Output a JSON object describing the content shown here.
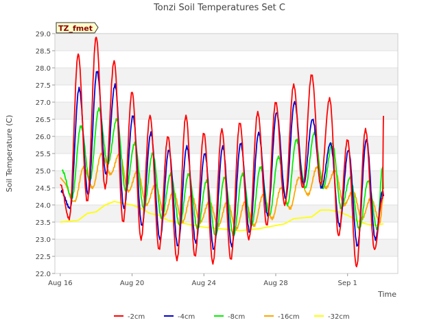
{
  "chart_data": {
    "type": "line",
    "title": "Tonzi Soil Temperatures Set C",
    "xlabel": "Time",
    "ylabel": "Soil Temperature (C)",
    "annotation": "TZ_fmet",
    "xlim": [
      0,
      18
    ],
    "ylim": [
      22.0,
      29.0
    ],
    "x_ticks": [
      {
        "label": "Aug 16",
        "value": 0
      },
      {
        "label": "Aug 20",
        "value": 4
      },
      {
        "label": "Aug 24",
        "value": 8
      },
      {
        "label": "Aug 28",
        "value": 12
      },
      {
        "label": "Sep 1",
        "value": 16
      }
    ],
    "y_ticks": [
      "22.0",
      "22.5",
      "23.0",
      "23.5",
      "24.0",
      "24.5",
      "25.0",
      "25.5",
      "26.0",
      "26.5",
      "27.0",
      "27.5",
      "28.0",
      "28.5",
      "29.0"
    ],
    "grid": "horizontal bands",
    "legend_position": "bottom",
    "colors": {
      "-2cm": "#ff0000",
      "-4cm": "#0000cc",
      "-8cm": "#00ee00",
      "-16cm": "#ffa500",
      "-32cm": "#ffff00"
    },
    "series": [
      {
        "name": "-2cm",
        "peaks": [
          [
            0.0,
            24.6
          ],
          [
            1.0,
            28.4
          ],
          [
            2.0,
            28.9
          ],
          [
            3.0,
            28.2
          ],
          [
            4.0,
            27.3
          ],
          [
            5.0,
            26.6
          ],
          [
            6.0,
            26.0
          ],
          [
            7.0,
            26.6
          ],
          [
            8.0,
            26.1
          ],
          [
            9.0,
            26.2
          ],
          [
            10.0,
            26.4
          ],
          [
            11.0,
            26.7
          ],
          [
            12.0,
            27.0
          ],
          [
            13.0,
            27.5
          ],
          [
            14.0,
            27.8
          ],
          [
            15.0,
            27.1
          ],
          [
            16.0,
            25.9
          ],
          [
            17.0,
            26.2
          ],
          [
            18.0,
            26.6
          ]
        ],
        "troughs": [
          [
            0.5,
            23.6
          ],
          [
            1.5,
            24.1
          ],
          [
            2.5,
            24.5
          ],
          [
            3.5,
            23.5
          ],
          [
            4.5,
            23.0
          ],
          [
            5.5,
            22.7
          ],
          [
            6.5,
            22.4
          ],
          [
            7.5,
            22.5
          ],
          [
            8.5,
            22.3
          ],
          [
            9.5,
            22.4
          ],
          [
            10.5,
            23.0
          ],
          [
            11.5,
            23.4
          ],
          [
            12.5,
            24.0
          ],
          [
            13.5,
            24.5
          ],
          [
            14.5,
            24.6
          ],
          [
            15.5,
            23.1
          ],
          [
            16.5,
            22.2
          ],
          [
            17.5,
            22.7
          ],
          [
            17.95,
            24.2
          ]
        ]
      },
      {
        "name": "-4cm",
        "peaks": [
          [
            0.05,
            24.4
          ],
          [
            1.05,
            27.4
          ],
          [
            2.05,
            27.9
          ],
          [
            3.05,
            27.5
          ],
          [
            4.05,
            26.6
          ],
          [
            5.05,
            26.1
          ],
          [
            6.05,
            25.6
          ],
          [
            7.05,
            25.7
          ],
          [
            8.05,
            25.5
          ],
          [
            9.05,
            25.7
          ],
          [
            10.05,
            25.8
          ],
          [
            11.05,
            26.1
          ],
          [
            12.05,
            26.7
          ],
          [
            13.05,
            27.0
          ],
          [
            14.05,
            26.5
          ],
          [
            15.05,
            25.8
          ],
          [
            16.05,
            25.6
          ],
          [
            17.05,
            25.9
          ],
          [
            18.0,
            24.3
          ]
        ],
        "troughs": [
          [
            0.55,
            23.9
          ],
          [
            1.55,
            24.3
          ],
          [
            2.55,
            24.9
          ],
          [
            3.55,
            23.9
          ],
          [
            4.55,
            23.4
          ],
          [
            5.55,
            23.0
          ],
          [
            6.55,
            22.8
          ],
          [
            7.55,
            22.9
          ],
          [
            8.55,
            22.7
          ],
          [
            9.55,
            22.8
          ],
          [
            10.55,
            23.2
          ],
          [
            11.55,
            23.7
          ],
          [
            12.55,
            24.2
          ],
          [
            13.55,
            24.6
          ],
          [
            14.55,
            24.5
          ],
          [
            15.55,
            23.4
          ],
          [
            16.55,
            22.8
          ],
          [
            17.55,
            23.0
          ],
          [
            17.95,
            24.4
          ]
        ]
      },
      {
        "name": "-8cm",
        "peaks": [
          [
            0.1,
            25.0
          ],
          [
            1.15,
            26.3
          ],
          [
            2.15,
            26.8
          ],
          [
            3.15,
            26.5
          ],
          [
            4.15,
            25.8
          ],
          [
            5.15,
            25.5
          ],
          [
            6.15,
            24.9
          ],
          [
            7.15,
            24.9
          ],
          [
            8.15,
            24.7
          ],
          [
            9.15,
            24.8
          ],
          [
            10.15,
            24.9
          ],
          [
            11.15,
            25.1
          ],
          [
            12.15,
            25.4
          ],
          [
            13.15,
            25.9
          ],
          [
            14.15,
            26.1
          ],
          [
            15.15,
            25.8
          ],
          [
            16.15,
            24.8
          ],
          [
            17.15,
            24.7
          ],
          [
            18.0,
            24.5
          ]
        ],
        "troughs": [
          [
            0.65,
            24.2
          ],
          [
            1.65,
            24.7
          ],
          [
            2.65,
            25.2
          ],
          [
            3.65,
            24.4
          ],
          [
            4.65,
            23.9
          ],
          [
            5.65,
            23.6
          ],
          [
            6.65,
            23.4
          ],
          [
            7.65,
            23.3
          ],
          [
            8.65,
            23.1
          ],
          [
            9.65,
            23.1
          ],
          [
            10.65,
            23.4
          ],
          [
            11.65,
            23.7
          ],
          [
            12.65,
            24.0
          ],
          [
            13.65,
            24.5
          ],
          [
            14.65,
            24.5
          ],
          [
            15.65,
            23.9
          ],
          [
            16.65,
            23.3
          ],
          [
            17.65,
            23.3
          ],
          [
            17.95,
            25.1
          ]
        ]
      },
      {
        "name": "-16cm",
        "peaks": [
          [
            0.0,
            24.8
          ],
          [
            1.3,
            25.1
          ],
          [
            2.3,
            25.5
          ],
          [
            3.3,
            25.5
          ],
          [
            4.3,
            25.0
          ],
          [
            5.3,
            24.6
          ],
          [
            6.3,
            24.4
          ],
          [
            7.3,
            24.3
          ],
          [
            8.3,
            24.1
          ],
          [
            9.3,
            24.1
          ],
          [
            10.3,
            24.1
          ],
          [
            11.3,
            24.3
          ],
          [
            12.3,
            24.5
          ],
          [
            13.3,
            24.8
          ],
          [
            14.3,
            25.1
          ],
          [
            15.3,
            25.0
          ],
          [
            16.3,
            24.4
          ],
          [
            17.3,
            24.2
          ],
          [
            18.0,
            24.3
          ]
        ],
        "troughs": [
          [
            0.8,
            24.1
          ],
          [
            1.8,
            24.5
          ],
          [
            2.8,
            24.9
          ],
          [
            3.8,
            24.4
          ],
          [
            4.8,
            24.0
          ],
          [
            5.8,
            23.7
          ],
          [
            6.8,
            23.5
          ],
          [
            7.8,
            23.5
          ],
          [
            8.8,
            23.4
          ],
          [
            9.8,
            23.3
          ],
          [
            10.8,
            23.4
          ],
          [
            11.8,
            23.6
          ],
          [
            12.8,
            23.9
          ],
          [
            13.8,
            24.3
          ],
          [
            14.8,
            24.5
          ],
          [
            15.8,
            24.0
          ],
          [
            16.8,
            23.6
          ],
          [
            17.8,
            23.5
          ]
        ]
      },
      {
        "name": "-32cm",
        "points": [
          [
            0.0,
            23.5
          ],
          [
            1.0,
            23.55
          ],
          [
            1.5,
            23.75
          ],
          [
            2.0,
            23.8
          ],
          [
            2.5,
            24.0
          ],
          [
            3.0,
            24.1
          ],
          [
            3.5,
            24.05
          ],
          [
            4.0,
            24.0
          ],
          [
            4.5,
            23.9
          ],
          [
            5.0,
            23.75
          ],
          [
            5.5,
            23.7
          ],
          [
            6.0,
            23.55
          ],
          [
            6.5,
            23.5
          ],
          [
            7.0,
            23.45
          ],
          [
            8.0,
            23.35
          ],
          [
            9.0,
            23.3
          ],
          [
            10.0,
            23.25
          ],
          [
            11.0,
            23.3
          ],
          [
            12.0,
            23.4
          ],
          [
            12.5,
            23.45
          ],
          [
            13.0,
            23.6
          ],
          [
            14.0,
            23.65
          ],
          [
            14.5,
            23.85
          ],
          [
            15.0,
            23.85
          ],
          [
            15.5,
            23.8
          ],
          [
            16.0,
            23.7
          ],
          [
            16.5,
            23.55
          ],
          [
            17.0,
            23.45
          ],
          [
            17.5,
            23.4
          ],
          [
            18.0,
            23.45
          ]
        ]
      }
    ]
  }
}
